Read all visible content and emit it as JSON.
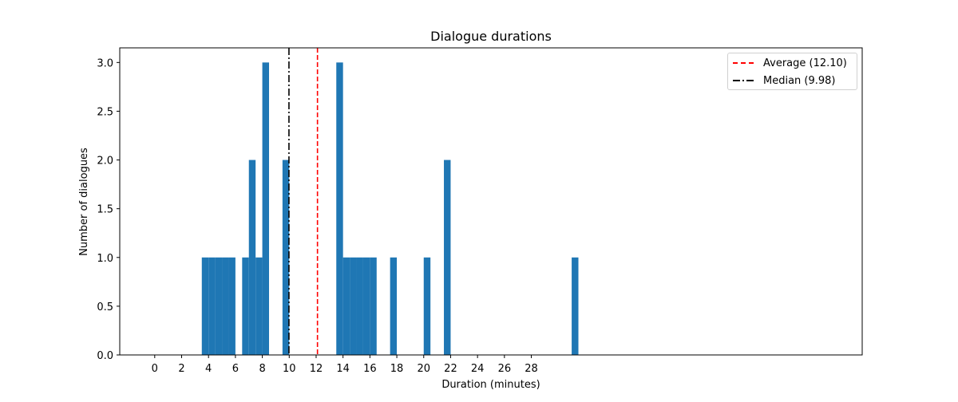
{
  "chart_data": {
    "type": "bar",
    "title": "Dialogue durations",
    "xlabel": "Duration (minutes)",
    "ylabel": "Number of dialogues",
    "xlim": [
      -2.6,
      52.6
    ],
    "ylim": [
      0,
      3.15
    ],
    "bin_width": 0.5,
    "x_ticks": [
      0,
      2,
      4,
      6,
      8,
      10,
      12,
      14,
      16,
      18,
      20,
      22,
      24,
      26,
      28
    ],
    "y_ticks": [
      0.0,
      0.5,
      1.0,
      1.5,
      2.0,
      2.5,
      3.0
    ],
    "bars": [
      {
        "x": 3.5,
        "value": 1
      },
      {
        "x": 4.0,
        "value": 1
      },
      {
        "x": 4.5,
        "value": 1
      },
      {
        "x": 5.0,
        "value": 1
      },
      {
        "x": 5.5,
        "value": 1
      },
      {
        "x": 6.5,
        "value": 1
      },
      {
        "x": 7.0,
        "value": 2
      },
      {
        "x": 7.5,
        "value": 1
      },
      {
        "x": 8.0,
        "value": 3
      },
      {
        "x": 9.5,
        "value": 2
      },
      {
        "x": 13.5,
        "value": 3
      },
      {
        "x": 14.0,
        "value": 1
      },
      {
        "x": 14.5,
        "value": 1
      },
      {
        "x": 15.0,
        "value": 1
      },
      {
        "x": 15.5,
        "value": 1
      },
      {
        "x": 16.0,
        "value": 1
      },
      {
        "x": 17.5,
        "value": 1
      },
      {
        "x": 20.0,
        "value": 1
      },
      {
        "x": 21.5,
        "value": 2
      },
      {
        "x": 31.0,
        "value": 1
      }
    ],
    "bar_color": "#1f77b4",
    "reference_lines": [
      {
        "label": "Average (12.10)",
        "x": 12.1,
        "color": "#ff0000",
        "style": "dashed"
      },
      {
        "label": "Median (9.98)",
        "x": 9.98,
        "color": "#000000",
        "style": "dashdot"
      }
    ],
    "legend_position": "top-right",
    "grid": false
  }
}
